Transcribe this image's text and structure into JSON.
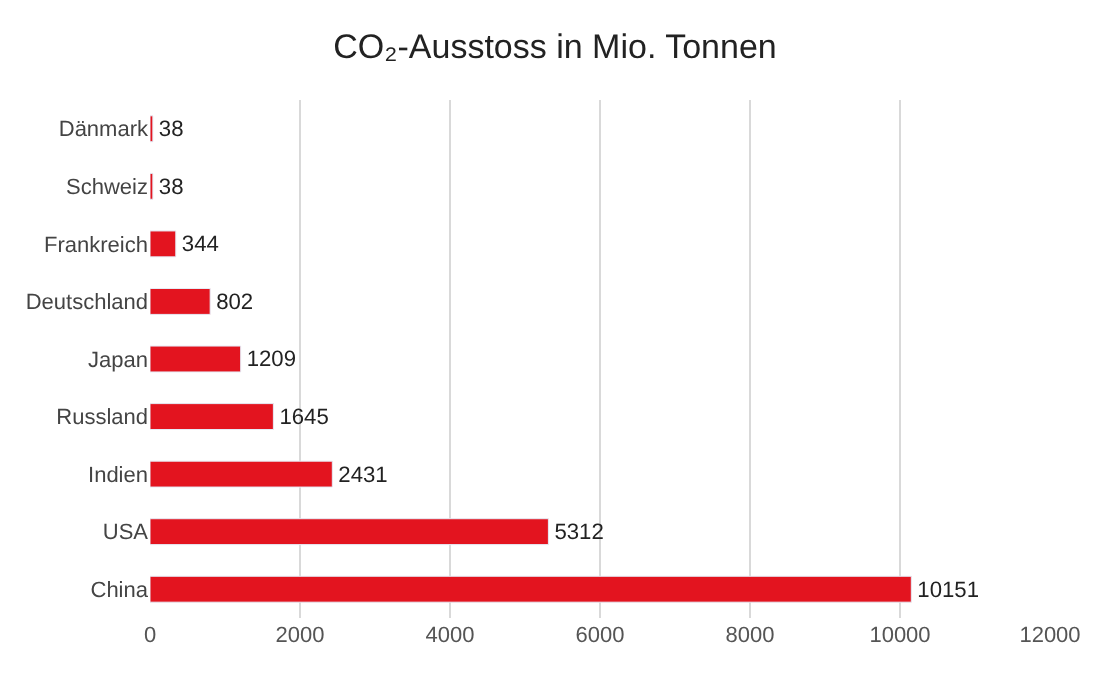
{
  "chart_data": {
    "type": "bar",
    "orientation": "horizontal",
    "title": "CO₂-Ausstoss in Mio. Tonnen",
    "categories": [
      "Dänmark",
      "Schweiz",
      "Frankreich",
      "Deutschland",
      "Japan",
      "Russland",
      "Indien",
      "USA",
      "China"
    ],
    "values": [
      38,
      38,
      344,
      802,
      1209,
      1645,
      2431,
      5312,
      10151
    ],
    "color": "#e3141f",
    "data_labels": true,
    "grid": "x",
    "xlim": [
      0,
      12000
    ],
    "xticks": [
      0,
      2000,
      4000,
      6000,
      8000,
      10000,
      12000
    ]
  }
}
